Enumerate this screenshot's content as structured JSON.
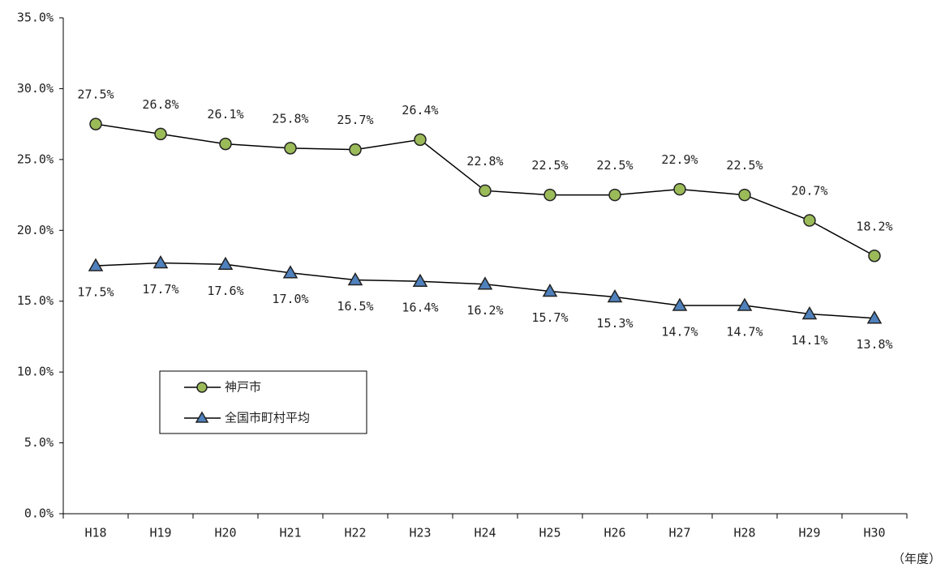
{
  "chart_data": {
    "type": "line",
    "x_label": "（年度）",
    "categories": [
      "H18",
      "H19",
      "H20",
      "H21",
      "H22",
      "H23",
      "H24",
      "H25",
      "H26",
      "H27",
      "H28",
      "H29",
      "H30"
    ],
    "series": [
      {
        "name": "神戸市",
        "color": "#9bbb59",
        "marker": "circle",
        "values": [
          27.5,
          26.8,
          26.1,
          25.8,
          25.7,
          26.4,
          22.8,
          22.5,
          22.5,
          22.9,
          22.5,
          20.7,
          18.2
        ],
        "value_labels": [
          "27.5%",
          "26.8%",
          "26.1%",
          "25.8%",
          "25.7%",
          "26.4%",
          "22.8%",
          "22.5%",
          "22.5%",
          "22.9%",
          "22.5%",
          "20.7%",
          "18.2%"
        ]
      },
      {
        "name": "全国市町村平均",
        "color": "#4f81bd",
        "marker": "triangle",
        "values": [
          17.5,
          17.7,
          17.6,
          17.0,
          16.5,
          16.4,
          16.2,
          15.7,
          15.3,
          14.7,
          14.7,
          14.1,
          13.8
        ],
        "value_labels": [
          "17.5%",
          "17.7%",
          "17.6%",
          "17.0%",
          "16.5%",
          "16.4%",
          "16.2%",
          "15.7%",
          "15.3%",
          "14.7%",
          "14.7%",
          "14.1%",
          "13.8%"
        ]
      }
    ],
    "ylim": [
      0,
      35
    ],
    "yticks": [
      {
        "value": 0,
        "label": "0.0%"
      },
      {
        "value": 5,
        "label": "5.0%"
      },
      {
        "value": 10,
        "label": "10.0%"
      },
      {
        "value": 15,
        "label": "15.0%"
      },
      {
        "value": 20,
        "label": "20.0%"
      },
      {
        "value": 25,
        "label": "25.0%"
      },
      {
        "value": 30,
        "label": "30.0%"
      },
      {
        "value": 35,
        "label": "35.0%"
      }
    ],
    "grid": false
  }
}
